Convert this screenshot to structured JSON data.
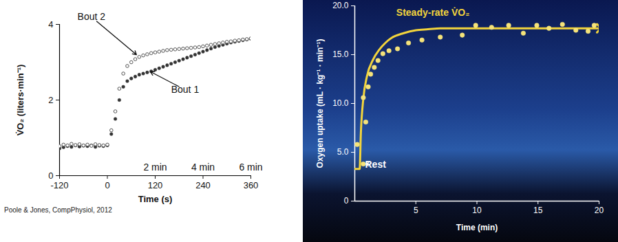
{
  "chart_data": [
    {
      "type": "scatter",
      "x_label": "Time (s)",
      "y_label": "V̇O₂ (liters·min⁻¹)",
      "caption": "Poole & Jones, CompPhysiol, 2012",
      "xlim": [
        -120,
        360
      ],
      "ylim": [
        0,
        4
      ],
      "xticks": [
        -120,
        0,
        120,
        240,
        360
      ],
      "yticks": [
        0,
        2,
        4
      ],
      "grid": false,
      "x": [
        -120,
        -110,
        -100,
        -90,
        -80,
        -70,
        -60,
        -50,
        -40,
        -30,
        -20,
        -10,
        0,
        10,
        20,
        30,
        40,
        50,
        60,
        70,
        80,
        90,
        100,
        110,
        120,
        130,
        140,
        150,
        160,
        170,
        180,
        190,
        200,
        210,
        220,
        230,
        240,
        250,
        260,
        270,
        280,
        290,
        300,
        310,
        320,
        330,
        340,
        350,
        360
      ],
      "series": [
        {
          "name": "Bout 1",
          "color": "#333333",
          "marker": "circle",
          "values": [
            0.72,
            0.75,
            0.78,
            0.76,
            0.8,
            0.77,
            0.79,
            0.78,
            0.8,
            0.76,
            0.79,
            0.78,
            0.8,
            1.1,
            1.5,
            2.0,
            2.35,
            2.5,
            2.57,
            2.62,
            2.67,
            2.7,
            2.73,
            2.76,
            2.8,
            2.84,
            2.88,
            2.92,
            2.96,
            3.0,
            3.04,
            3.08,
            3.12,
            3.16,
            3.2,
            3.24,
            3.28,
            3.32,
            3.36,
            3.4,
            3.43,
            3.46,
            3.49,
            3.52,
            3.54,
            3.56,
            3.58,
            3.6,
            3.62
          ]
        },
        {
          "name": "Bout 2",
          "color": "#555555",
          "marker": "open_circle",
          "values": [
            0.78,
            0.82,
            0.8,
            0.84,
            0.81,
            0.83,
            0.8,
            0.82,
            0.79,
            0.83,
            0.81,
            0.8,
            0.82,
            1.2,
            1.7,
            2.3,
            2.7,
            2.9,
            3.0,
            3.08,
            3.14,
            3.18,
            3.21,
            3.24,
            3.26,
            3.28,
            3.3,
            3.32,
            3.33,
            3.34,
            3.35,
            3.36,
            3.37,
            3.38,
            3.39,
            3.4,
            3.42,
            3.44,
            3.46,
            3.48,
            3.5,
            3.52,
            3.54,
            3.55,
            3.57,
            3.58,
            3.6,
            3.61,
            3.63
          ]
        }
      ],
      "annotations": [
        {
          "text": "Bout 2",
          "x": -40,
          "y": 4.2,
          "arrow_to": [
            73,
            3.2
          ]
        },
        {
          "text": "Bout 1",
          "x": 195,
          "y": 2.27,
          "arrow_to": [
            108,
            2.75
          ]
        },
        {
          "text": "2 min",
          "x": 120,
          "y": 0.22
        },
        {
          "text": "4 min",
          "x": 240,
          "y": 0.22
        },
        {
          "text": "6 min",
          "x": 360,
          "y": 0.22
        }
      ]
    },
    {
      "type": "scatter",
      "x_label": "Time (min)",
      "y_label": "Oxygen uptake (mL · kg⁻¹ · min⁻¹)",
      "xlim": [
        0,
        20
      ],
      "ylim": [
        0,
        20
      ],
      "xticks": [
        5,
        10,
        15,
        20
      ],
      "yticks": [
        0,
        {
          "value": 5,
          "label": "5.0"
        },
        {
          "value": 10,
          "label": "10.0"
        },
        {
          "value": 15,
          "label": "15.0"
        },
        {
          "value": 20,
          "label": "20.0"
        }
      ],
      "grid": false,
      "series": [
        {
          "type": "line",
          "color": "#f2d43c",
          "x": [
            0,
            0.4,
            0.5,
            0.7,
            1.0,
            1.5,
            2,
            2.5,
            3,
            4,
            5,
            6,
            7,
            20
          ],
          "values": [
            3.3,
            3.3,
            7,
            10.5,
            12.8,
            14.5,
            15.5,
            16.2,
            16.7,
            17.2,
            17.5,
            17.6,
            17.7,
            17.7
          ]
        },
        {
          "type": "scatter",
          "color": "#f5e37a",
          "marker": "circle",
          "x": [
            0.2,
            0.7,
            0.7,
            0.9,
            1.1,
            1.3,
            1.6,
            1.9,
            2.3,
            2.8,
            3.5,
            4.4,
            5.5,
            7.0,
            8.8,
            9.9,
            11.2,
            12.6,
            13.8,
            14.9,
            15.9,
            17.0,
            18.1,
            19.1,
            19.6
          ],
          "values": [
            5.8,
            3.8,
            10.6,
            8.1,
            11.7,
            13.0,
            13.7,
            14.4,
            15.1,
            15.4,
            15.6,
            16.2,
            16.5,
            16.8,
            17.0,
            18.0,
            17.8,
            18.0,
            17.2,
            18.0,
            17.7,
            18.1,
            17.5,
            17.4,
            18.0
          ]
        }
      ],
      "annotations": [
        {
          "text": "Steady-rate V̇O₂",
          "x": 6.4,
          "y": 19.3,
          "color": "#f2d43c"
        },
        {
          "text": "Rest",
          "x": 1.7,
          "y": 3.7,
          "arrow_to": [
            0.9,
            3.8
          ]
        }
      ]
    }
  ]
}
